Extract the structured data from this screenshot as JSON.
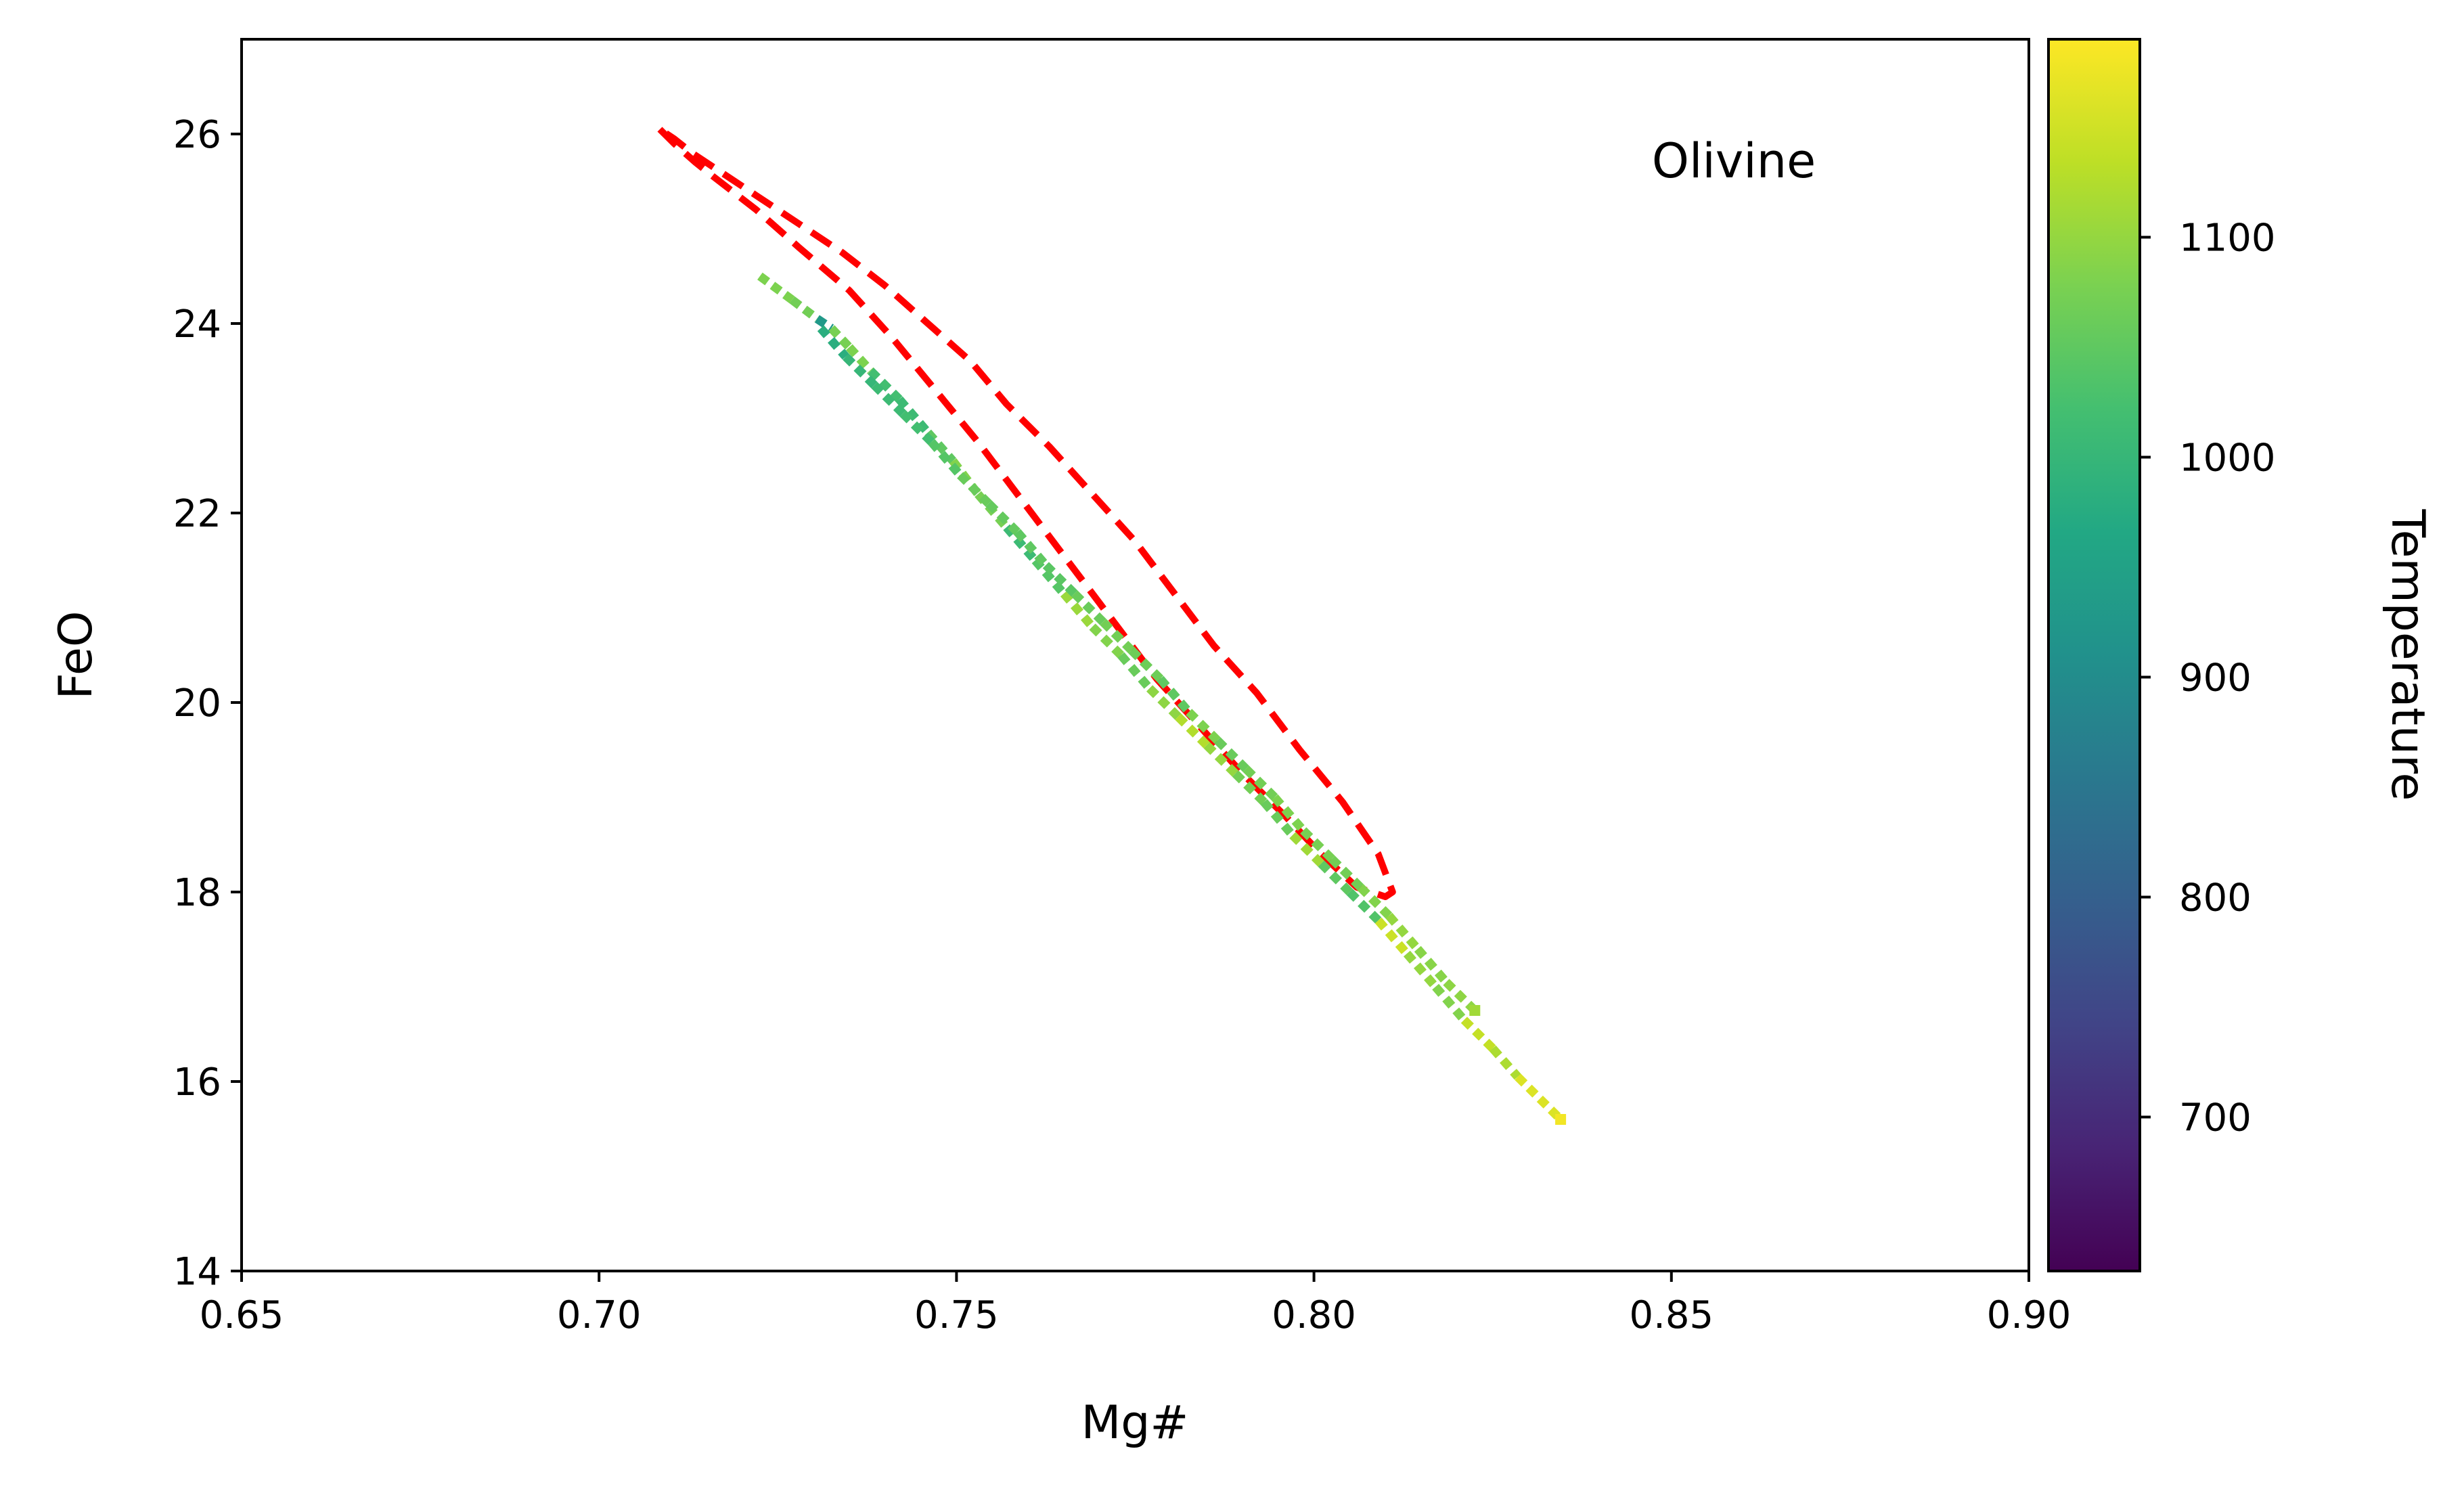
{
  "chart_data": {
    "type": "scatter",
    "xlabel": "Mg#",
    "ylabel": "FeO",
    "xlim": [
      0.65,
      0.9
    ],
    "ylim": [
      14,
      27
    ],
    "xticks": [
      "0.65",
      "0.70",
      "0.75",
      "0.80",
      "0.85",
      "0.90"
    ],
    "yticks": [
      "14",
      "16",
      "18",
      "20",
      "22",
      "24",
      "26"
    ],
    "grid": false,
    "annotation": "Olivine",
    "annotation_position": "top-right",
    "colorbar": {
      "label": "Temperature",
      "colormap": "viridis",
      "range": [
        630,
        1190
      ],
      "ticks": [
        "700",
        "800",
        "900",
        "1000",
        "1100"
      ]
    },
    "series": [
      {
        "type": "dashed-contour",
        "color": "#ff0000",
        "x": [
          0.7085,
          0.7105,
          0.7135,
          0.716,
          0.722,
          0.728,
          0.735,
          0.741,
          0.747,
          0.753,
          0.758,
          0.763,
          0.768,
          0.773,
          0.778,
          0.784,
          0.79,
          0.796,
          0.801,
          0.806,
          0.81,
          0.811,
          0.809,
          0.804,
          0.798,
          0.792,
          0.786,
          0.78,
          0.775,
          0.769,
          0.763,
          0.757,
          0.752,
          0.746,
          0.74,
          0.734,
          0.728,
          0.722,
          0.717,
          0.713,
          0.7105,
          0.7085
        ],
        "y": [
          26.05,
          25.9,
          25.7,
          25.55,
          25.2,
          24.8,
          24.35,
          23.85,
          23.3,
          22.75,
          22.25,
          21.75,
          21.25,
          20.75,
          20.25,
          19.75,
          19.25,
          18.8,
          18.4,
          18.05,
          17.95,
          18.0,
          18.4,
          18.95,
          19.5,
          20.1,
          20.6,
          21.2,
          21.7,
          22.2,
          22.7,
          23.15,
          23.6,
          24.0,
          24.4,
          24.75,
          25.05,
          25.35,
          25.6,
          25.8,
          25.95,
          26.05
        ]
      },
      {
        "type": "scatter-path",
        "x": [
          0.7225,
          0.727,
          0.7305,
          0.7325,
          0.735,
          0.738,
          0.742,
          0.746,
          0.7495,
          0.753,
          0.757,
          0.761,
          0.765,
          0.769,
          0.773,
          0.777,
          0.781,
          0.785,
          0.789,
          0.793,
          0.797,
          0.801,
          0.805,
          0.809,
          0.813,
          0.817,
          0.821,
          0.825,
          0.8285,
          0.8345
        ],
        "y": [
          24.5,
          24.25,
          24.05,
          23.95,
          23.75,
          23.5,
          23.2,
          22.85,
          22.55,
          22.2,
          21.85,
          21.5,
          21.15,
          20.8,
          20.5,
          20.15,
          19.85,
          19.55,
          19.25,
          18.95,
          18.6,
          18.3,
          18.0,
          17.7,
          17.35,
          17.0,
          16.65,
          16.35,
          16.05,
          15.6
        ],
        "temperature": [
          1080,
          1070,
          930,
          1075,
          1080,
          1020,
          1010,
          1050,
          1085,
          1075,
          1010,
          1040,
          1105,
          1085,
          1060,
          1095,
          1125,
          1100,
          1070,
          1060,
          1110,
          1050,
          1035,
          1145,
          1100,
          1085,
          1140,
          1120,
          1160,
          1180
        ]
      },
      {
        "type": "scatter-path",
        "x": [
          0.731,
          0.7345,
          0.7385,
          0.7425,
          0.7465,
          0.7505,
          0.7545,
          0.7585,
          0.7625,
          0.7665,
          0.7705,
          0.7745,
          0.7785,
          0.7825,
          0.7865,
          0.7905,
          0.7945,
          0.7985,
          0.8025,
          0.8065,
          0.8105,
          0.8145,
          0.8185,
          0.8225
        ],
        "y": [
          23.95,
          23.65,
          23.35,
          23.05,
          22.75,
          22.4,
          22.1,
          21.8,
          21.45,
          21.15,
          20.85,
          20.55,
          20.25,
          19.9,
          19.6,
          19.3,
          19.0,
          18.65,
          18.35,
          18.05,
          17.75,
          17.4,
          17.05,
          16.75
        ],
        "temperature": [
          980,
          1000,
          1010,
          1020,
          1040,
          1060,
          1055,
          1050,
          1045,
          1060,
          1070,
          1065,
          1050,
          1080,
          1060,
          1070,
          1080,
          1075,
          1070,
          1085,
          1100,
          1090,
          1095,
          1110
        ]
      }
    ]
  }
}
